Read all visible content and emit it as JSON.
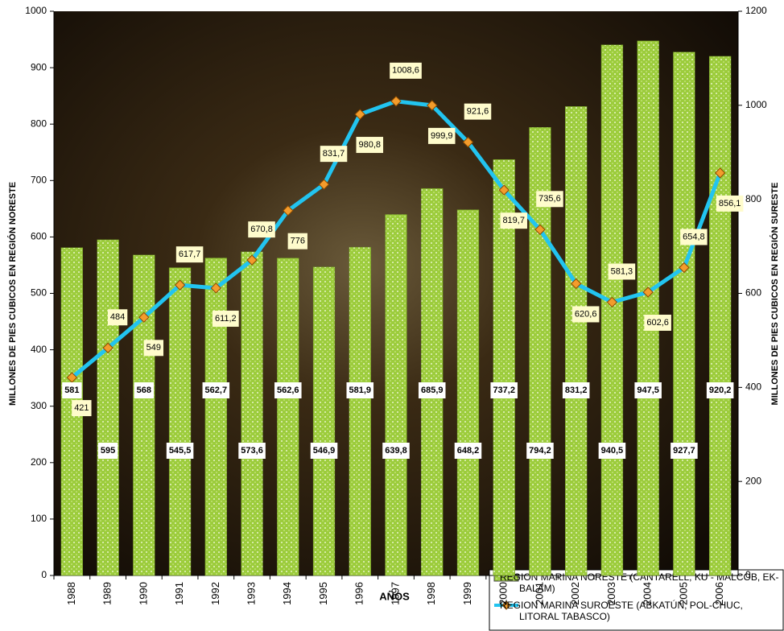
{
  "chart_data": {
    "type": "bar-line",
    "x_label": "AÑOS",
    "y_label": "MILLONES DE PIES CUBICOS EN REGIÓN NORESTE",
    "y2_label": "MILLONES DE PIES CUBICOS EN REGIÓN SURESTE",
    "categories": [
      "1988",
      "1989",
      "1990",
      "1991",
      "1992",
      "1993",
      "1994",
      "1995",
      "1996",
      "1997",
      "1998",
      "1999",
      "2000",
      "2001",
      "2002",
      "2003",
      "2004",
      "2005",
      "2006"
    ],
    "ylim": [
      0,
      1000
    ],
    "yticks": [
      0,
      100,
      200,
      300,
      400,
      500,
      600,
      700,
      800,
      900,
      1000
    ],
    "y2lim": [
      0,
      1200
    ],
    "y2ticks": [
      0,
      200,
      400,
      600,
      800,
      1000,
      1200
    ],
    "series": [
      {
        "name": "REGION MARINA NORESTE (CANTARELL, KU - MALCOB, EK-BALAM)",
        "type": "bar",
        "color": "#9ccc3c",
        "values": [
          581,
          595,
          568,
          545.5,
          562.7,
          573.6,
          562.6,
          546.9,
          581.9,
          639.8,
          685.9,
          648.2,
          737.2,
          794.2,
          831.2,
          940.5,
          947.5,
          927.7,
          920.2
        ],
        "value_labels": [
          "581",
          "595",
          "568",
          "545,5",
          "562,7",
          "573,6",
          "562,6",
          "546,9",
          "581,9",
          "639,8",
          "685,9",
          "648,2",
          "737,2",
          "794,2",
          "831,2",
          "940,5",
          "947,5",
          "927,7",
          "920,2"
        ]
      },
      {
        "name": "REGION MARINA SUROESTE (ABKATÚN, POL-CHUC, LITORAL TABASCO)",
        "type": "line",
        "axis": "y2",
        "color": "#22c4f0",
        "values": [
          421,
          484,
          549,
          617.7,
          611.2,
          670.8,
          776,
          831.7,
          980.8,
          1008.6,
          999.9,
          921.6,
          819.7,
          735.6,
          620.6,
          581.3,
          602.6,
          654.8,
          856.1
        ],
        "value_labels": [
          "421",
          "484",
          "549",
          "617,7",
          "611,2",
          "670,8",
          "776",
          "831,7",
          "980,8",
          "1008,6",
          "999,9",
          "921,6",
          "819,7",
          "735,6",
          "620,6",
          "581,3",
          "602,6",
          "654,8",
          "856,1"
        ]
      }
    ]
  }
}
